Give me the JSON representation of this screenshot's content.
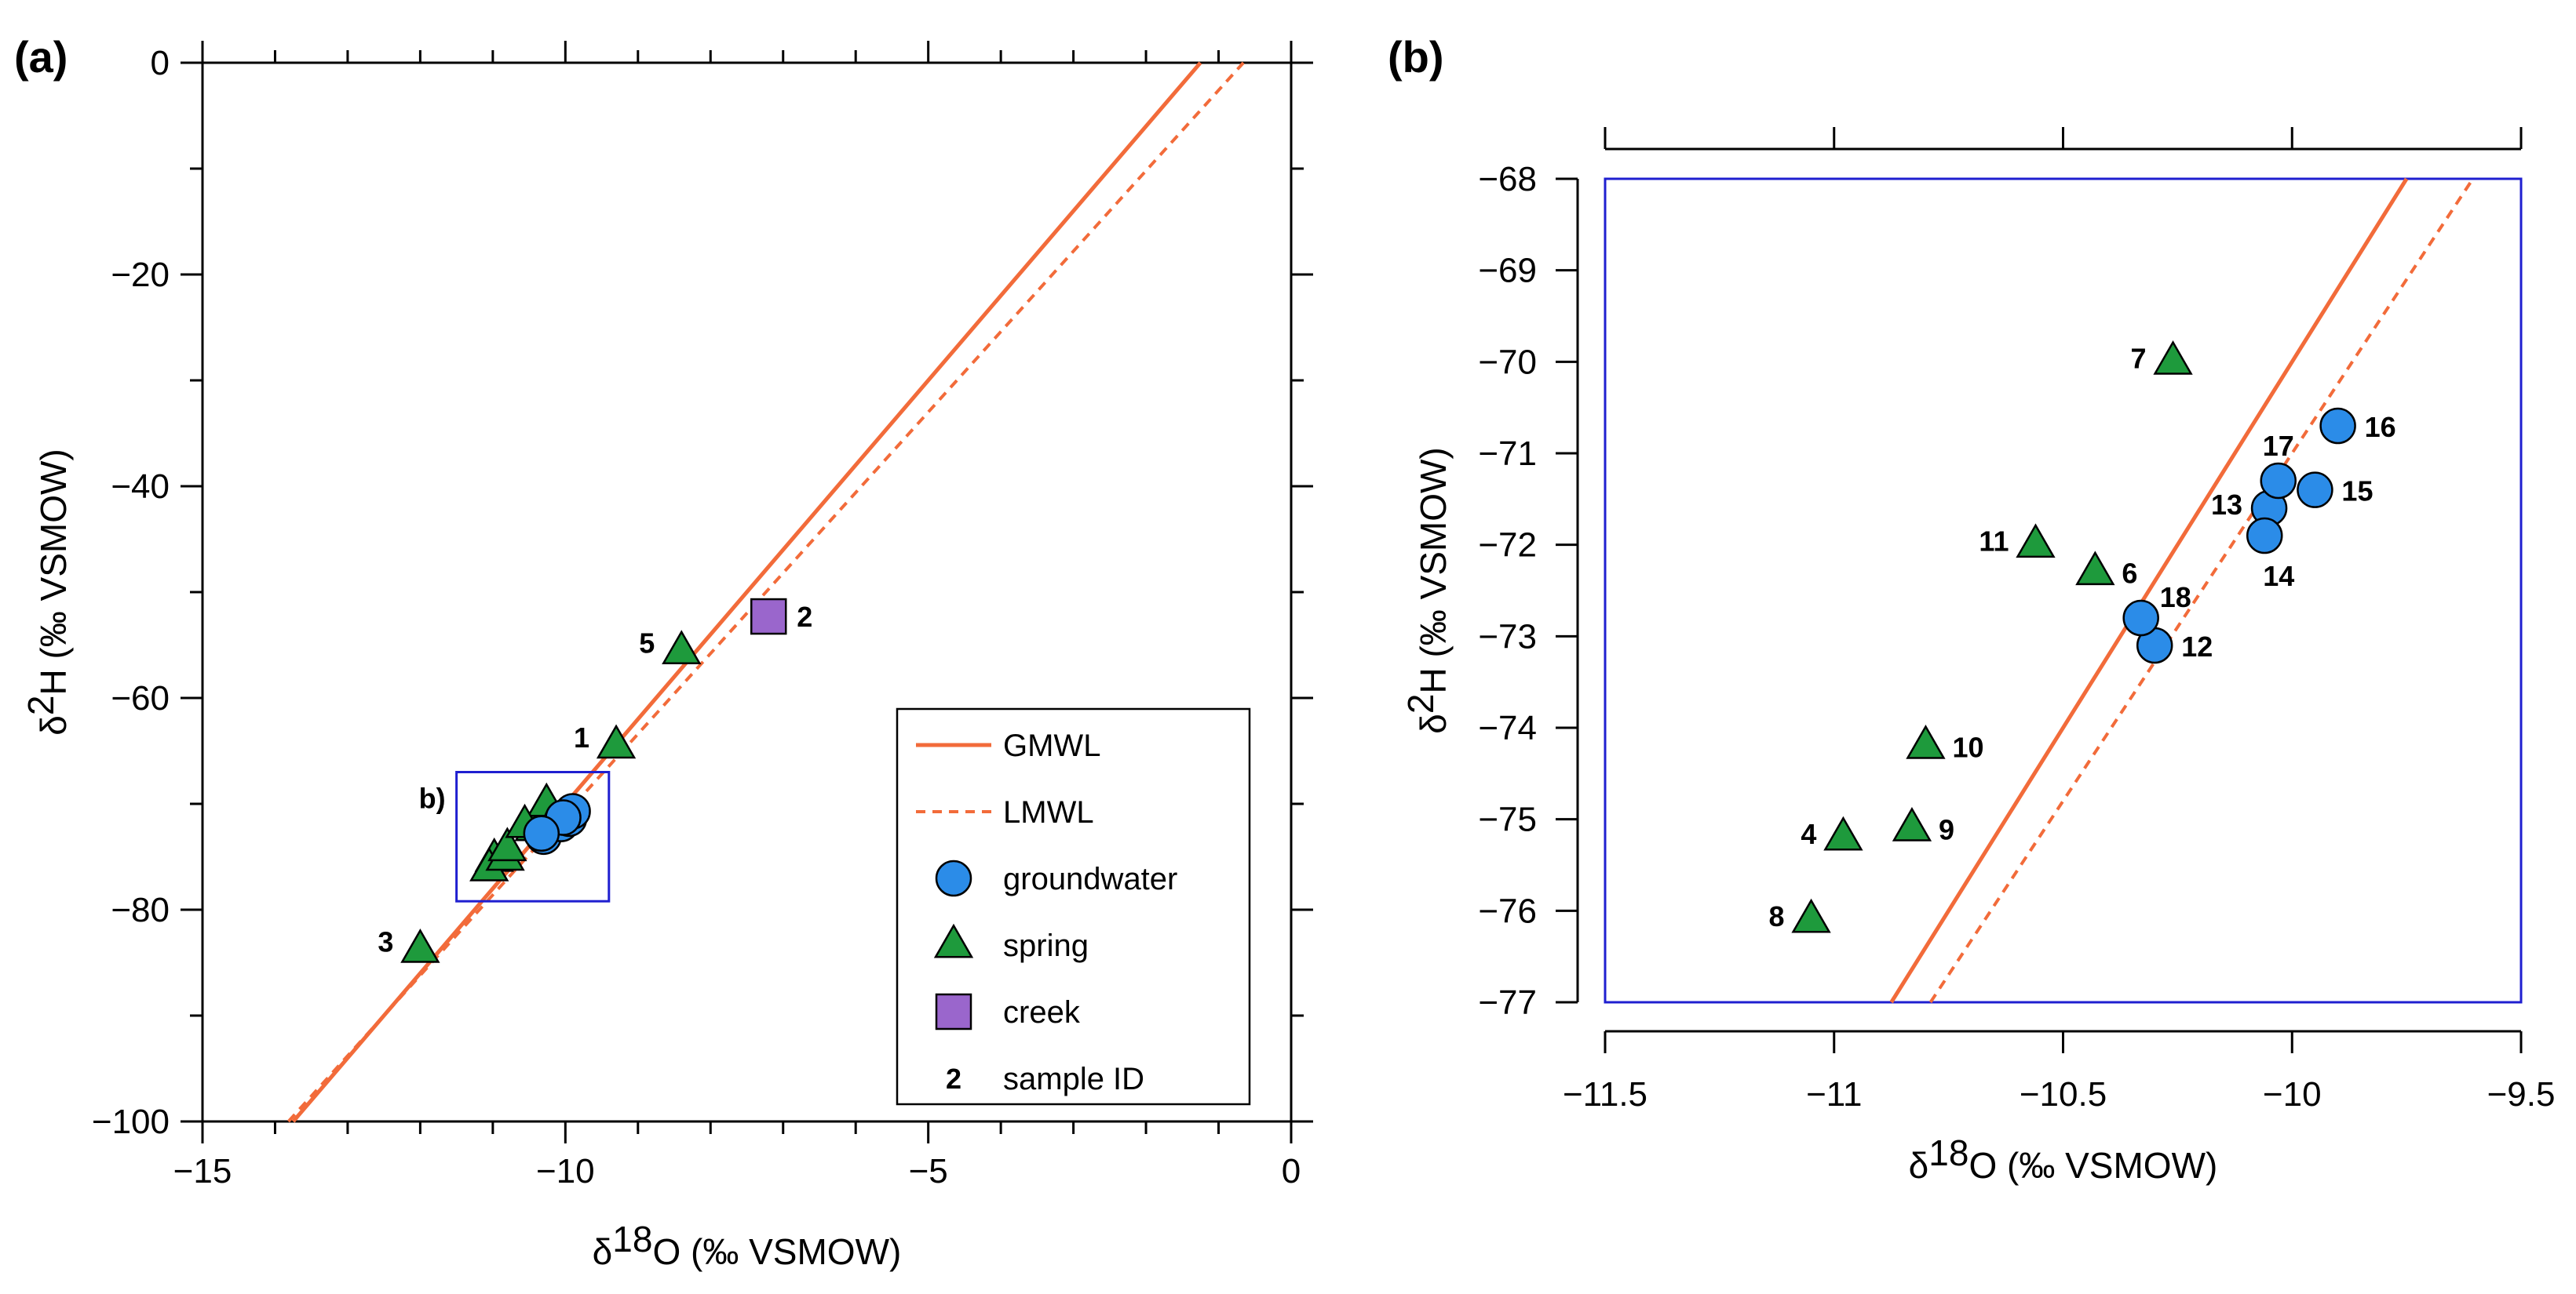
{
  "chart_data": [
    {
      "panel": "(a)",
      "type": "scatter",
      "xlabel_parts": [
        "δ",
        "18",
        "O (‰ VSMOW)"
      ],
      "ylabel_parts": [
        "δ",
        "2",
        "H (‰ VSMOW)"
      ],
      "xlim": [
        -15,
        0
      ],
      "ylim": [
        -100,
        0
      ],
      "x_ticks": [
        -15,
        -10,
        -5,
        0
      ],
      "x_tick_labels": [
        "−15",
        "−10",
        "−5",
        "0"
      ],
      "y_ticks": [
        -100,
        -80,
        -60,
        -40,
        -20,
        0
      ],
      "y_tick_labels": [
        "−100",
        "−80",
        "−60",
        "−40",
        "−20",
        "0"
      ],
      "x_minor_step": 1,
      "y_minor_step": 10,
      "lines": [
        {
          "name": "GMWL",
          "slope": 8,
          "intercept": 10,
          "style": "solid",
          "color": "#f26b3a"
        },
        {
          "name": "LMWL",
          "slope": 7.6,
          "intercept": 5,
          "style": "dashed",
          "color": "#f26b3a"
        }
      ],
      "series": [
        {
          "name": "groundwater",
          "marker": "circle",
          "color": "#2b8ce8",
          "points": [
            {
              "id": "12",
              "x": -10.3,
              "y": -73.1
            },
            {
              "id": "13",
              "x": -10.05,
              "y": -71.6
            },
            {
              "id": "14",
              "x": -10.06,
              "y": -71.9
            },
            {
              "id": "15",
              "x": -9.95,
              "y": -71.4
            },
            {
              "id": "16",
              "x": -9.9,
              "y": -70.7
            },
            {
              "id": "17",
              "x": -10.03,
              "y": -71.3
            },
            {
              "id": "18",
              "x": -10.33,
              "y": -72.8
            }
          ]
        },
        {
          "name": "spring",
          "marker": "triangle",
          "color": "#1e9a3c",
          "points": [
            {
              "id": "1",
              "x": -9.3,
              "y": -64.5,
              "label": "1"
            },
            {
              "id": "3",
              "x": -12.0,
              "y": -83.8,
              "label": "3"
            },
            {
              "id": "4",
              "x": -10.98,
              "y": -75.2
            },
            {
              "id": "5",
              "x": -8.4,
              "y": -55.6,
              "label": "5"
            },
            {
              "id": "6",
              "x": -10.43,
              "y": -72.3
            },
            {
              "id": "7",
              "x": -10.26,
              "y": -70.0
            },
            {
              "id": "8",
              "x": -11.05,
              "y": -76.1
            },
            {
              "id": "9",
              "x": -10.83,
              "y": -75.1
            },
            {
              "id": "10",
              "x": -10.8,
              "y": -74.2
            },
            {
              "id": "11",
              "x": -10.56,
              "y": -72.0
            }
          ]
        },
        {
          "name": "creek",
          "marker": "square",
          "color": "#9a66cc",
          "points": [
            {
              "id": "2",
              "x": -7.2,
              "y": -52.3,
              "label": "2"
            }
          ]
        }
      ],
      "inset_box": {
        "label": "b)",
        "x": [
          -11.5,
          -9.4
        ],
        "y": [
          -79.2,
          -67.0
        ]
      },
      "legend": {
        "position": "bottom-right",
        "entries": [
          {
            "label": "GMWL",
            "kind": "solid-line"
          },
          {
            "label": "LMWL",
            "kind": "dashed-line"
          },
          {
            "label": "groundwater",
            "kind": "circle"
          },
          {
            "label": "spring",
            "kind": "triangle"
          },
          {
            "label": "creek",
            "kind": "square"
          },
          {
            "label": "sample ID",
            "kind": "text",
            "sample": "2"
          }
        ]
      }
    },
    {
      "panel": "(b)",
      "type": "scatter",
      "xlabel_parts": [
        "δ",
        "18",
        "O (‰ VSMOW)"
      ],
      "ylabel_parts": [
        "δ",
        "2",
        "H (‰ VSMOW)"
      ],
      "xlim": [
        -11.5,
        -9.5
      ],
      "ylim": [
        -77,
        -68
      ],
      "x_ticks": [
        -11.5,
        -11,
        -10.5,
        -10,
        -9.5
      ],
      "x_tick_labels": [
        "−11.5",
        "−11",
        "−10.5",
        "−10",
        "−9.5"
      ],
      "y_ticks": [
        -77,
        -76,
        -75,
        -74,
        -73,
        -72,
        -71,
        -70,
        -69,
        -68
      ],
      "y_tick_labels": [
        "−77",
        "−76",
        "−75",
        "−74",
        "−73",
        "−72",
        "−71",
        "−70",
        "−69",
        "−68"
      ],
      "lines": [
        {
          "name": "GMWL",
          "slope": 8,
          "intercept": 10,
          "style": "solid",
          "color": "#f26b3a"
        },
        {
          "name": "LMWL",
          "slope": 7.6,
          "intercept": 5,
          "style": "dashed",
          "color": "#f26b3a"
        }
      ],
      "series": [
        {
          "name": "groundwater",
          "marker": "circle",
          "color": "#2b8ce8",
          "points": [
            {
              "id": "12",
              "x": -10.3,
              "y": -73.1,
              "label": "12",
              "pos": "right"
            },
            {
              "id": "13",
              "x": -10.05,
              "y": -71.6,
              "label": "13",
              "pos": "left"
            },
            {
              "id": "14",
              "x": -10.06,
              "y": -71.9,
              "label": "14",
              "pos": "below"
            },
            {
              "id": "15",
              "x": -9.95,
              "y": -71.4,
              "label": "15",
              "pos": "right"
            },
            {
              "id": "16",
              "x": -9.9,
              "y": -70.7,
              "label": "16",
              "pos": "right"
            },
            {
              "id": "17",
              "x": -10.03,
              "y": -71.3,
              "label": "17",
              "pos": "above"
            },
            {
              "id": "18",
              "x": -10.33,
              "y": -72.8,
              "label": "18",
              "pos": "upright"
            }
          ]
        },
        {
          "name": "spring",
          "marker": "triangle",
          "color": "#1e9a3c",
          "points": [
            {
              "id": "4",
              "x": -10.98,
              "y": -75.2,
              "label": "4",
              "pos": "left"
            },
            {
              "id": "6",
              "x": -10.43,
              "y": -72.3,
              "label": "6",
              "pos": "right"
            },
            {
              "id": "7",
              "x": -10.26,
              "y": -70.0,
              "label": "7",
              "pos": "left"
            },
            {
              "id": "8",
              "x": -11.05,
              "y": -76.1,
              "label": "8",
              "pos": "left"
            },
            {
              "id": "9",
              "x": -10.83,
              "y": -75.1,
              "label": "9",
              "pos": "right"
            },
            {
              "id": "10",
              "x": -10.8,
              "y": -74.2,
              "label": "10",
              "pos": "right"
            },
            {
              "id": "11",
              "x": -10.56,
              "y": -72.0,
              "label": "11",
              "pos": "left"
            }
          ]
        }
      ]
    }
  ]
}
